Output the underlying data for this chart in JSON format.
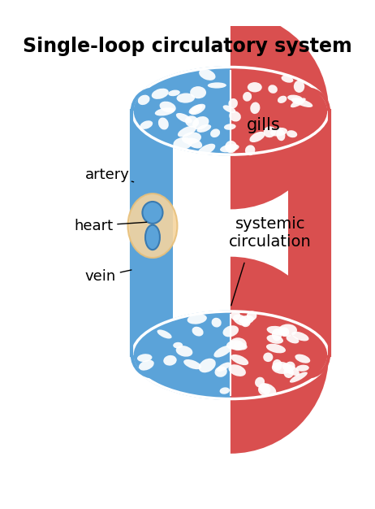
{
  "title": "Single-loop circulatory system",
  "title_fontsize": 17,
  "title_fontweight": "bold",
  "blue_color": "#5BA3D9",
  "red_color": "#D94F4F",
  "heart_outer_color": "#F5D5A0",
  "heart_inner_color": "#4A90C4",
  "white_color": "#FFFFFF",
  "bg_color": "#FFFFFF",
  "label_artery": "artery",
  "label_heart": "heart",
  "label_vein": "vein",
  "label_gills": "gills",
  "label_systemic": "systemic\ncirculation",
  "label_fontsize": 13
}
